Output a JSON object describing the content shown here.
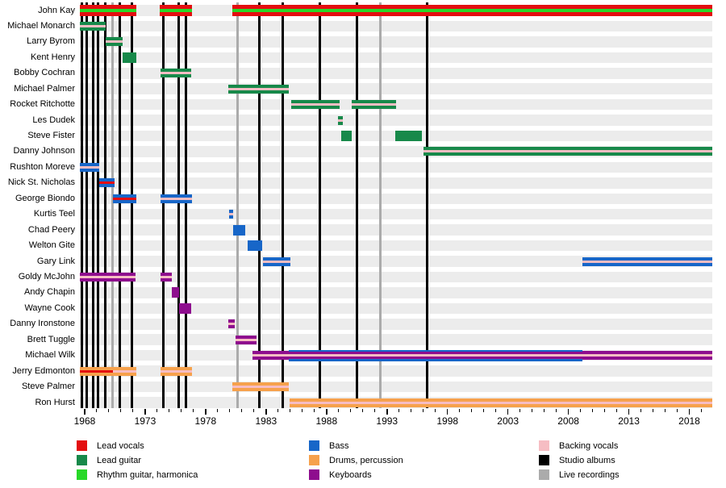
{
  "chart_data": {
    "type": "timeline",
    "x_axis": {
      "start": 1967.6,
      "end": 2019.9,
      "minor_tick_interval": 1,
      "major_tick_interval": 5,
      "major_ticks": [
        1968,
        1973,
        1978,
        1983,
        1988,
        1993,
        1998,
        2003,
        2008,
        2013,
        2018
      ],
      "major_tick_labels": [
        "1968",
        "1973",
        "1978",
        "1983",
        "1988",
        "1993",
        "1998",
        "2003",
        "2008",
        "2013",
        "2018"
      ]
    },
    "colors": {
      "lead_vocals": "#e30e10",
      "lead_guitar": "#17894a",
      "rhythm_guitar": "#28d828",
      "bass": "#1766c8",
      "drums": "#f6a14c",
      "keyboards": "#8e0d8e",
      "backing_vocals": "#f6bdc3",
      "studio_album": "#000000",
      "live_recording": "#ababab"
    },
    "band_styles": {
      "vocals_rhythm": [
        [
          "lead_vocals",
          5
        ],
        [
          "rhythm_guitar",
          4
        ],
        [
          "lead_vocals",
          5
        ]
      ],
      "guitar_backing": [
        [
          "lead_guitar",
          4
        ],
        [
          "backing_vocals",
          3
        ],
        [
          "lead_guitar",
          4
        ]
      ],
      "guitar_solid": [
        [
          "lead_guitar",
          13
        ]
      ],
      "bass_backing": [
        [
          "bass",
          4
        ],
        [
          "backing_vocals",
          3
        ],
        [
          "bass",
          4
        ]
      ],
      "bass_vocals": [
        [
          "bass",
          4
        ],
        [
          "lead_vocals",
          3
        ],
        [
          "bass",
          4
        ]
      ],
      "bass_solid": [
        [
          "bass",
          13
        ]
      ],
      "keys_backing": [
        [
          "keyboards",
          4
        ],
        [
          "backing_vocals",
          3
        ],
        [
          "keyboards",
          4
        ]
      ],
      "keys_solid": [
        [
          "keyboards",
          13
        ]
      ],
      "drums_vocals": [
        [
          "drums",
          4
        ],
        [
          "lead_vocals",
          3
        ],
        [
          "drums",
          4
        ]
      ],
      "drums_backing": [
        [
          "drums",
          4
        ],
        [
          "backing_vocals",
          3
        ],
        [
          "drums",
          4
        ]
      ],
      "keys_bass_backing": [
        [
          "bass",
          2.5
        ],
        [
          "keyboards",
          3
        ],
        [
          "backing_vocals",
          3
        ],
        [
          "keyboards",
          3
        ],
        [
          "bass",
          2.5
        ]
      ]
    },
    "album_lines": {
      "studio": [
        1967.8,
        1968.17,
        1968.67,
        1969.07,
        1969.73,
        1970.93,
        1971.9,
        1974.53,
        1975.8,
        1976.37,
        1982.47,
        1984.37,
        1987.43,
        1990.5,
        1996.33
      ],
      "live": [
        1970.3,
        1980.67,
        1992.43
      ]
    },
    "members": [
      {
        "name": "John Kay",
        "segments": [
          [
            1967.6,
            1972.27,
            "vocals_rhythm"
          ],
          [
            1974.2,
            1976.87,
            "vocals_rhythm"
          ],
          [
            1980.2,
            2019.9,
            "vocals_rhythm"
          ]
        ]
      },
      {
        "name": "Michael Monarch",
        "segments": [
          [
            1967.6,
            1969.75,
            "guitar_backing"
          ]
        ]
      },
      {
        "name": "Larry Byrom",
        "segments": [
          [
            1969.75,
            1971.15,
            "guitar_backing"
          ]
        ]
      },
      {
        "name": "Kent Henry",
        "segments": [
          [
            1971.15,
            1972.27,
            "guitar_solid"
          ]
        ]
      },
      {
        "name": "Bobby Cochran",
        "segments": [
          [
            1974.27,
            1976.8,
            "guitar_backing"
          ]
        ]
      },
      {
        "name": "Michael Palmer",
        "segments": [
          [
            1979.87,
            1984.87,
            "guitar_backing"
          ]
        ]
      },
      {
        "name": "Rocket Ritchotte",
        "segments": [
          [
            1985.07,
            1989.07,
            "guitar_backing"
          ],
          [
            1990.07,
            1993.73,
            "guitar_backing"
          ]
        ]
      },
      {
        "name": "Les Dudek",
        "segments": [
          [
            1988.97,
            1989.37,
            "guitar_backing"
          ]
        ]
      },
      {
        "name": "Steve Fister",
        "segments": [
          [
            1989.2,
            1990.07,
            "guitar_solid"
          ],
          [
            1993.67,
            1995.89,
            "guitar_solid"
          ]
        ]
      },
      {
        "name": "Danny Johnson",
        "segments": [
          [
            1996.05,
            2019.9,
            "guitar_backing"
          ]
        ]
      },
      {
        "name": "Rushton Moreve",
        "segments": [
          [
            1967.6,
            1969.22,
            "bass_backing"
          ]
        ]
      },
      {
        "name": "Nick St. Nicholas",
        "segments": [
          [
            1969.18,
            1970.45,
            "bass_vocals"
          ]
        ]
      },
      {
        "name": "George Biondo",
        "segments": [
          [
            1970.33,
            1972.27,
            "bass_vocals"
          ],
          [
            1974.27,
            1976.87,
            "bass_backing"
          ]
        ]
      },
      {
        "name": "Kurtis Teel",
        "segments": [
          [
            1979.94,
            1980.27,
            "bass_backing"
          ]
        ]
      },
      {
        "name": "Chad Peery",
        "segments": [
          [
            1980.25,
            1981.27,
            "bass_solid"
          ]
        ]
      },
      {
        "name": "Welton Gite",
        "segments": [
          [
            1981.47,
            1982.67,
            "bass_solid"
          ]
        ]
      },
      {
        "name": "Gary Link",
        "segments": [
          [
            1982.73,
            1985.0,
            "bass_backing"
          ],
          [
            2009.18,
            2019.9,
            "bass_backing"
          ]
        ]
      },
      {
        "name": "Goldy McJohn",
        "segments": [
          [
            1967.6,
            1972.2,
            "keys_backing"
          ],
          [
            1974.27,
            1975.22,
            "keys_backing"
          ]
        ]
      },
      {
        "name": "Andy Chapin",
        "segments": [
          [
            1975.22,
            1975.8,
            "keys_solid"
          ]
        ]
      },
      {
        "name": "Wayne Cook",
        "segments": [
          [
            1975.8,
            1976.8,
            "keys_solid"
          ]
        ]
      },
      {
        "name": "Danny Ironstone",
        "segments": [
          [
            1979.87,
            1980.43,
            "keys_backing"
          ]
        ]
      },
      {
        "name": "Brett Tuggle",
        "segments": [
          [
            1980.45,
            1982.22,
            "keys_backing"
          ]
        ]
      },
      {
        "name": "Michael Wilk",
        "segments": [
          [
            1981.9,
            1984.87,
            "keys_backing"
          ],
          [
            1984.87,
            2009.18,
            "keys_bass_backing"
          ],
          [
            2009.18,
            2019.9,
            "keys_backing"
          ]
        ]
      },
      {
        "name": "Jerry Edmonton",
        "segments": [
          [
            1967.6,
            1970.33,
            "drums_vocals"
          ],
          [
            1970.33,
            1972.27,
            "drums_backing"
          ],
          [
            1974.27,
            1976.87,
            "drums_backing"
          ]
        ]
      },
      {
        "name": "Steve Palmer",
        "segments": [
          [
            1980.2,
            1984.87,
            "drums_backing"
          ]
        ]
      },
      {
        "name": "Ron Hurst",
        "segments": [
          [
            1984.95,
            2019.9,
            "drums_backing"
          ]
        ]
      }
    ],
    "legend": [
      {
        "label": "Lead vocals",
        "color_key": "lead_vocals",
        "col": 0,
        "row": 0
      },
      {
        "label": "Lead guitar",
        "color_key": "lead_guitar",
        "col": 0,
        "row": 1
      },
      {
        "label": "Rhythm guitar, harmonica",
        "color_key": "rhythm_guitar",
        "col": 0,
        "row": 2
      },
      {
        "label": "Bass",
        "color_key": "bass",
        "col": 1,
        "row": 0
      },
      {
        "label": "Drums, percussion",
        "color_key": "drums",
        "col": 1,
        "row": 1
      },
      {
        "label": "Keyboards",
        "color_key": "keyboards",
        "col": 1,
        "row": 2
      },
      {
        "label": "Backing vocals",
        "color_key": "backing_vocals",
        "col": 2,
        "row": 0
      },
      {
        "label": "Studio albums",
        "color_key": "studio_album",
        "col": 2,
        "row": 1
      },
      {
        "label": "Live recordings",
        "color_key": "live_recording",
        "col": 2,
        "row": 2
      }
    ]
  }
}
